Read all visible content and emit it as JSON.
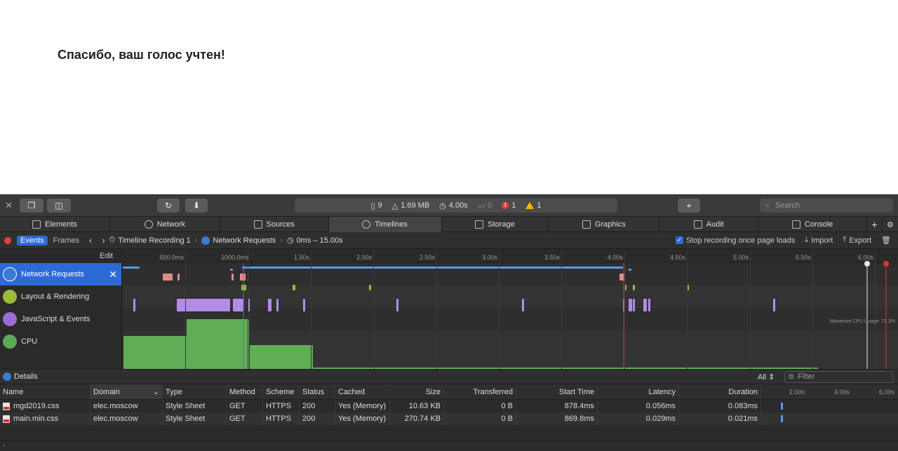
{
  "page": {
    "heading": "Спасибо, ваш голос учтен!"
  },
  "toolbar": {
    "activity": {
      "resources": "9",
      "size": "1.69 MB",
      "time": "4.00s",
      "logs": "0",
      "errors": "1",
      "warnings": "1"
    },
    "search_placeholder": "Search"
  },
  "tabs": [
    {
      "label": "Elements",
      "icon": "elements-icon"
    },
    {
      "label": "Network",
      "icon": "network-icon"
    },
    {
      "label": "Sources",
      "icon": "sources-icon"
    },
    {
      "label": "Timelines",
      "icon": "timelines-icon",
      "active": true
    },
    {
      "label": "Storage",
      "icon": "storage-icon"
    },
    {
      "label": "Graphics",
      "icon": "graphics-icon"
    },
    {
      "label": "Audit",
      "icon": "audit-icon"
    },
    {
      "label": "Console",
      "icon": "console-icon"
    }
  ],
  "timeline_nav": {
    "events": "Events",
    "frames": "Frames",
    "recording": "Timeline Recording 1",
    "section": "Network Requests",
    "range": "0ms – 15.00s",
    "stop_recording": "Stop recording once page loads",
    "import": "Import",
    "export": "Export"
  },
  "tracks": {
    "edit": "Edit",
    "items": [
      {
        "label": "Network Requests",
        "color": "#3a7bd5"
      },
      {
        "label": "Layout & Rendering",
        "color": "#9bbb3a"
      },
      {
        "label": "JavaScript & Events",
        "color": "#9b6bd6"
      },
      {
        "label": "CPU",
        "color": "#5fa85a"
      }
    ]
  },
  "ruler": {
    "labels": [
      "500.0ms",
      "1000.0ms",
      "1.50s",
      "2.00s",
      "2.50s",
      "3.00s",
      "3.50s",
      "4.00s",
      "4.50s",
      "5.00s",
      "5.50s",
      "6.00s"
    ],
    "cpu_max": "Maximum CPU Usage: 72.3%"
  },
  "details": {
    "title": "Details",
    "scope": "All",
    "filter_placeholder": "Filter",
    "columns": [
      "Name",
      "Domain",
      "Type",
      "Method",
      "Scheme",
      "Status",
      "Cached",
      "Size",
      "Transferred",
      "Start Time",
      "Latency",
      "Duration"
    ],
    "waterfall_labels": [
      "2.00s",
      "4.00s",
      "6.00s"
    ],
    "rows": [
      {
        "name": "mgd2019.css",
        "domain": "elec.moscow",
        "type": "Style Sheet",
        "method": "GET",
        "scheme": "HTTPS",
        "status": "200",
        "cached": "Yes (Memory)",
        "size": "10.63 KB",
        "transferred": "0 B",
        "start": "878.4ms",
        "latency": "0.056ms",
        "duration": "0.083ms"
      },
      {
        "name": "main.min.css",
        "domain": "elec.moscow",
        "type": "Style Sheet",
        "method": "GET",
        "scheme": "HTTPS",
        "status": "200",
        "cached": "Yes (Memory)",
        "size": "270.74 KB",
        "transferred": "0 B",
        "start": "869.8ms",
        "latency": "0.029ms",
        "duration": "0.021ms"
      }
    ]
  },
  "colors": {
    "accent": "#2d6ad6",
    "network": "#5a9be8",
    "layout": "#9bbb3a",
    "script": "#b48be8",
    "cpu": "#5fae55",
    "marker_red": "#d33b2f"
  }
}
